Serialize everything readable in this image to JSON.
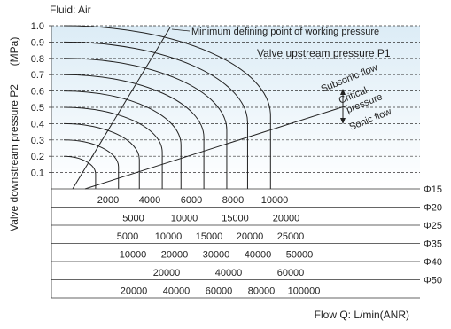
{
  "chart_data": {
    "type": "line",
    "title": "",
    "fluid_label": "Fluid: Air",
    "ylabel": "Valve downstream pressure P2",
    "yunit": "(MPa)",
    "xlabel": "Flow Q: L/min(ANR)",
    "ylim": [
      0,
      1.0
    ],
    "y_ticks": [
      "0.1",
      "0.2",
      "0.3",
      "0.4",
      "0.5",
      "0.6",
      "0.7",
      "0.8",
      "0.9",
      "1.0"
    ],
    "grid": true,
    "annotations": {
      "min_point": "Minimum defining point of working pressure",
      "upstream": "Valve upstream pressure P1",
      "subsonic": "Subsonic flow",
      "critical": "Critical pressure",
      "sonic": "Sonic flow"
    },
    "upstream_pressures_mpa": [
      0.2,
      0.3,
      0.4,
      0.5,
      0.6,
      0.7,
      0.8,
      0.9,
      1.0
    ],
    "sonic_flow_phi15": [
      1400,
      2500,
      3500,
      4600,
      5500,
      6600,
      7700,
      8700,
      9800
    ],
    "flow_scales": [
      {
        "port": "Φ15",
        "ticks": [
          "2000",
          "4000",
          "6000",
          "8000",
          "10000"
        ],
        "values": [
          2000,
          4000,
          6000,
          8000,
          10000
        ]
      },
      {
        "port": "Φ20",
        "ticks": [
          "5000",
          "10000",
          "15000",
          "20000"
        ],
        "values": [
          5000,
          10000,
          15000,
          20000
        ]
      },
      {
        "port": "Φ25",
        "ticks": [
          "5000",
          "10000",
          "15000",
          "20000",
          "25000"
        ],
        "values": [
          5000,
          10000,
          15000,
          20000,
          25000
        ]
      },
      {
        "port": "Φ35",
        "ticks": [
          "10000",
          "20000",
          "30000",
          "40000",
          "50000"
        ],
        "values": [
          10000,
          20000,
          30000,
          40000,
          50000
        ]
      },
      {
        "port": "Φ40",
        "ticks": [
          "20000",
          "40000",
          "60000"
        ],
        "values": [
          20000,
          40000,
          60000
        ]
      },
      {
        "port": "Φ50",
        "ticks": [
          "20000",
          "40000",
          "60000",
          "80000",
          "100000"
        ],
        "values": [
          20000,
          40000,
          60000,
          80000,
          100000
        ]
      }
    ]
  }
}
